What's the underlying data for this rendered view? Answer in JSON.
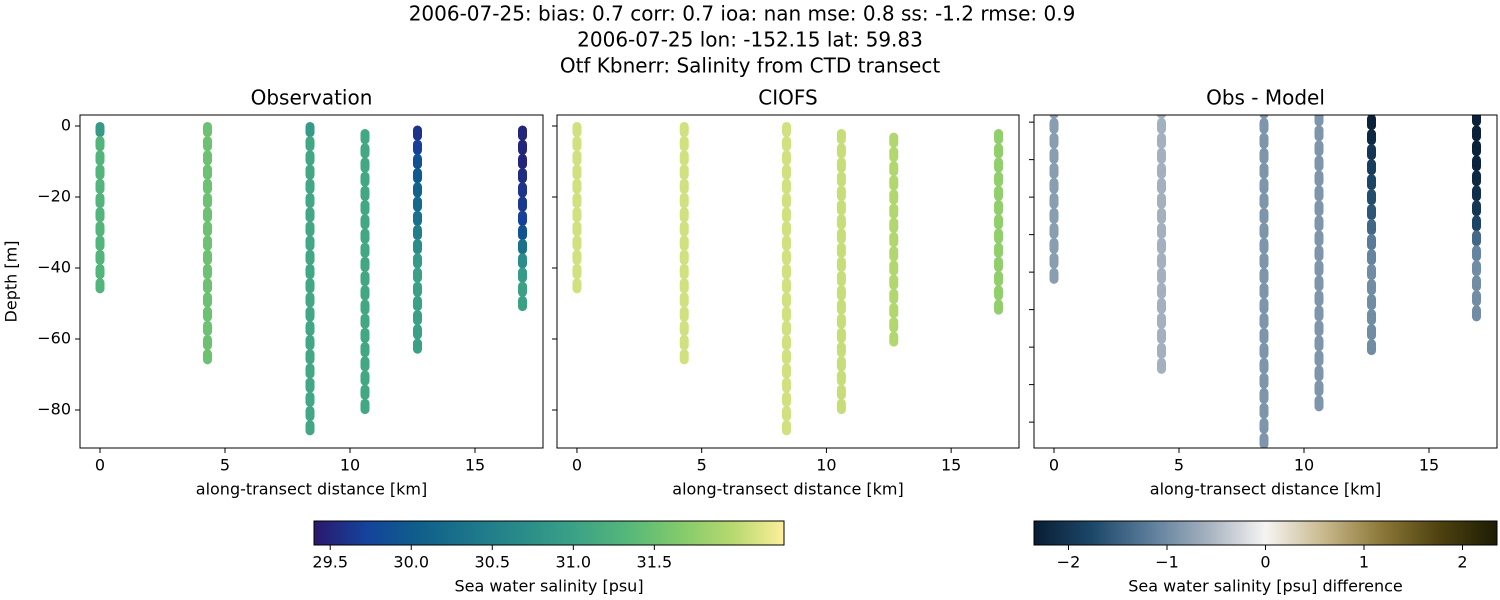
{
  "title": [
    "2006-07-25: bias: 0.7  corr: 0.7  ioa: nan  mse: 0.8  ss: -1.2  rmse: 0.9",
    "2006-07-25 lon: -152.15 lat: 59.83",
    "Otf Kbnerr: Salinity from CTD transect"
  ],
  "chart_data": [
    {
      "type": "scatter",
      "title": "Observation",
      "xlabel": "along-transect distance [km]",
      "ylabel": "Depth [m]",
      "colorbar": 0,
      "xlim": [
        -0.8,
        17.72
      ],
      "ylim": [
        -90.7,
        3.1
      ],
      "xticks": [
        0,
        5,
        10,
        15
      ],
      "yticks": [
        0,
        {
          "value": -20,
          "label": "−20"
        },
        {
          "value": -40,
          "label": "−40"
        },
        {
          "value": -60,
          "label": "−60"
        },
        {
          "value": -80,
          "label": "−80"
        }
      ],
      "show_ytick_labels": true,
      "casts": [
        {
          "x": 0,
          "depth": [
            -1,
            -5,
            -9,
            -13,
            -17,
            -21,
            -25,
            -29,
            -33,
            -37,
            -41,
            -45
          ],
          "values": [
            30.9,
            31.3,
            31.3,
            31.3,
            31.3,
            31.3,
            31.3,
            31.3,
            31.3,
            31.3,
            31.3,
            31.3
          ]
        },
        {
          "x": 4.3,
          "depth": [
            -1,
            -5,
            -9,
            -13,
            -17,
            -21,
            -25,
            -29,
            -33,
            -37,
            -41,
            -45,
            -49,
            -53,
            -57,
            -61,
            -65
          ],
          "values": [
            31.5,
            31.5,
            31.5,
            31.5,
            31.5,
            31.5,
            31.5,
            31.5,
            31.5,
            31.5,
            31.5,
            31.5,
            31.5,
            31.5,
            31.5,
            31.5,
            31.5
          ]
        },
        {
          "x": 8.4,
          "depth": [
            -1,
            -5,
            -9,
            -13,
            -17,
            -21,
            -25,
            -29,
            -33,
            -37,
            -41,
            -45,
            -49,
            -53,
            -57,
            -61,
            -65,
            -69,
            -73,
            -77,
            -81,
            -85
          ],
          "values": [
            30.9,
            31.1,
            31.1,
            31.1,
            31.1,
            31.1,
            31.1,
            31.1,
            31.1,
            31.1,
            31.1,
            31.1,
            31.1,
            31.1,
            31.1,
            31.1,
            31.1,
            31.1,
            31.1,
            31.1,
            31.1,
            31.1
          ]
        },
        {
          "x": 10.6,
          "depth": [
            -3,
            -7,
            -11,
            -15,
            -19,
            -23,
            -27,
            -31,
            -35,
            -39,
            -43,
            -47,
            -51,
            -55,
            -59,
            -63,
            -67,
            -71,
            -75,
            -79
          ],
          "values": [
            31.1,
            31.1,
            31.1,
            31.1,
            31.1,
            31.1,
            31.1,
            31.1,
            31.1,
            31.1,
            31.1,
            31.1,
            31.1,
            31.1,
            31.1,
            31.1,
            31.1,
            31.1,
            31.1,
            31.1
          ]
        },
        {
          "x": 12.7,
          "depth": [
            -2,
            -6,
            -10,
            -14,
            -18,
            -22,
            -26,
            -30,
            -34,
            -38,
            -42,
            -46,
            -50,
            -54,
            -58,
            -62
          ],
          "values": [
            29.6,
            29.7,
            29.9,
            30.0,
            30.1,
            30.2,
            30.3,
            30.5,
            30.7,
            30.9,
            31.0,
            31.0,
            31.0,
            31.0,
            31.0,
            31.0
          ]
        },
        {
          "x": 16.9,
          "depth": [
            -2,
            -6,
            -10,
            -14,
            -18,
            -22,
            -26,
            -30,
            -34,
            -38,
            -42,
            -46,
            -50
          ],
          "values": [
            29.5,
            29.5,
            29.5,
            29.55,
            29.6,
            29.65,
            29.7,
            29.9,
            30.3,
            30.7,
            30.9,
            31.0,
            31.0
          ]
        }
      ]
    },
    {
      "type": "scatter",
      "title": "CIOFS",
      "xlabel": "along-transect distance [km]",
      "colorbar": 0,
      "xlim": [
        -0.8,
        17.72
      ],
      "ylim": [
        -90.7,
        3.1
      ],
      "xticks": [
        0,
        5,
        10,
        15
      ],
      "yticks": [
        0,
        -20,
        -40,
        -60,
        -80
      ],
      "show_ytick_labels": false,
      "casts": [
        {
          "x": 0,
          "depth": [
            -1,
            -5,
            -9,
            -13,
            -17,
            -21,
            -25,
            -29,
            -33,
            -37,
            -41,
            -45
          ],
          "values": [
            32.1,
            32.1,
            32.1,
            32.1,
            32.1,
            32.1,
            32.1,
            32.1,
            32.1,
            32.1,
            32.1,
            32.1
          ]
        },
        {
          "x": 4.3,
          "depth": [
            -1,
            -5,
            -9,
            -13,
            -17,
            -21,
            -25,
            -29,
            -33,
            -37,
            -41,
            -45,
            -49,
            -53,
            -57,
            -61,
            -65
          ],
          "values": [
            32.1,
            32.1,
            32.1,
            32.1,
            32.1,
            32.1,
            32.1,
            32.1,
            32.1,
            32.1,
            32.1,
            32.1,
            32.1,
            32.1,
            32.1,
            32.1,
            32.1
          ]
        },
        {
          "x": 8.4,
          "depth": [
            -1,
            -5,
            -9,
            -13,
            -17,
            -21,
            -25,
            -29,
            -33,
            -37,
            -41,
            -45,
            -49,
            -53,
            -57,
            -61,
            -65,
            -69,
            -73,
            -77,
            -81,
            -85
          ],
          "values": [
            32.1,
            32.1,
            32.1,
            32.1,
            32.1,
            32.1,
            32.1,
            32.1,
            32.1,
            32.1,
            32.1,
            32.1,
            32.1,
            32.1,
            32.1,
            32.1,
            32.1,
            32.1,
            32.1,
            32.1,
            32.1,
            32.1
          ]
        },
        {
          "x": 10.6,
          "depth": [
            -3,
            -7,
            -11,
            -15,
            -19,
            -23,
            -27,
            -31,
            -35,
            -39,
            -43,
            -47,
            -51,
            -55,
            -59,
            -63,
            -67,
            -71,
            -75,
            -79
          ],
          "values": [
            32.05,
            32.05,
            32.05,
            32.05,
            32.05,
            32.05,
            32.05,
            32.05,
            32.05,
            32.05,
            32.05,
            32.05,
            32.05,
            32.05,
            32.05,
            32.05,
            32.05,
            32.05,
            32.05,
            32.05
          ]
        },
        {
          "x": 12.7,
          "depth": [
            -4,
            -8,
            -12,
            -16,
            -20,
            -24,
            -28,
            -32,
            -36,
            -40,
            -44,
            -48,
            -52,
            -56,
            -60
          ],
          "values": [
            31.95,
            31.95,
            31.95,
            31.95,
            31.95,
            31.95,
            31.95,
            31.95,
            31.95,
            31.95,
            31.95,
            31.95,
            31.95,
            31.95,
            31.95
          ]
        },
        {
          "x": 16.9,
          "depth": [
            -3,
            -7,
            -11,
            -15,
            -19,
            -23,
            -27,
            -31,
            -35,
            -39,
            -43,
            -47,
            -51
          ],
          "values": [
            31.75,
            31.75,
            31.75,
            31.75,
            31.75,
            31.75,
            31.75,
            31.75,
            31.75,
            31.75,
            31.75,
            31.75,
            31.75
          ]
        }
      ]
    },
    {
      "type": "scatter",
      "title": "Obs - Model",
      "xlabel": "along-transect distance [km]",
      "colorbar": 1,
      "xlim": [
        -0.8,
        17.72
      ],
      "ylim": [
        -86.9,
        1.9
      ],
      "xticks": [
        0,
        5,
        10,
        15
      ],
      "yticks": [
        0,
        -10,
        -20,
        -30,
        -40,
        -50,
        -60,
        -70,
        -80
      ],
      "show_ytick_labels": false,
      "casts": [
        {
          "x": 0,
          "depth": [
            3,
            -1,
            -5,
            -9,
            -13,
            -17,
            -21,
            -25,
            -29,
            -33,
            -37,
            -41
          ],
          "values": [
            -0.8,
            -0.8,
            -0.8,
            -0.8,
            -0.8,
            -0.8,
            -0.8,
            -0.8,
            -0.8,
            -0.8,
            -0.8,
            -0.8
          ]
        },
        {
          "x": 4.3,
          "depth": [
            3,
            -1,
            -5,
            -9,
            -13,
            -17,
            -21,
            -25,
            -29,
            -33,
            -37,
            -41,
            -45,
            -49,
            -53,
            -57,
            -61,
            -65
          ],
          "values": [
            -0.6,
            -0.6,
            -0.6,
            -0.6,
            -0.6,
            -0.6,
            -0.6,
            -0.6,
            -0.6,
            -0.6,
            -0.6,
            -0.6,
            -0.6,
            -0.6,
            -0.6,
            -0.6,
            -0.6,
            -0.6
          ]
        },
        {
          "x": 8.4,
          "depth": [
            3,
            -1,
            -5,
            -9,
            -13,
            -17,
            -21,
            -25,
            -29,
            -33,
            -37,
            -41,
            -45,
            -49,
            -53,
            -57,
            -61,
            -65,
            -69,
            -73,
            -77,
            -81,
            -85
          ],
          "values": [
            -0.9,
            -0.9,
            -0.9,
            -0.9,
            -0.9,
            -0.9,
            -0.9,
            -0.9,
            -0.9,
            -0.9,
            -0.9,
            -0.9,
            -0.9,
            -0.9,
            -0.9,
            -0.9,
            -0.9,
            -0.9,
            -0.9,
            -0.9,
            -0.9,
            -0.9,
            -0.9
          ]
        },
        {
          "x": 10.6,
          "depth": [
            1,
            -3,
            -7,
            -11,
            -15,
            -19,
            -23,
            -27,
            -31,
            -35,
            -39,
            -43,
            -47,
            -51,
            -55,
            -59,
            -63,
            -67,
            -71,
            -75
          ],
          "values": [
            -0.9,
            -0.9,
            -0.9,
            -0.9,
            -0.9,
            -0.9,
            -0.9,
            -0.9,
            -0.9,
            -0.9,
            -0.9,
            -0.9,
            -0.9,
            -0.9,
            -0.9,
            -0.9,
            -0.9,
            -0.9,
            -0.9,
            -0.9
          ]
        },
        {
          "x": 12.7,
          "depth": [
            0,
            -4,
            -8,
            -12,
            -16,
            -20,
            -24,
            -28,
            -32,
            -36,
            -40,
            -44,
            -48,
            -52,
            -56,
            -60
          ],
          "values": [
            -2.3,
            -2.2,
            -2.0,
            -1.9,
            -1.8,
            -1.7,
            -1.6,
            -1.4,
            -1.2,
            -1.1,
            -1.0,
            -1.0,
            -1.0,
            -1.0,
            -1.0,
            -1.0
          ]
        },
        {
          "x": 16.9,
          "depth": [
            1,
            -3,
            -7,
            -11,
            -15,
            -19,
            -23,
            -27,
            -31,
            -35,
            -39,
            -43,
            -47,
            -51
          ],
          "values": [
            -2.3,
            -2.3,
            -2.3,
            -2.25,
            -2.2,
            -2.1,
            -2.0,
            -1.8,
            -1.4,
            -1.1,
            -1.0,
            -1.0,
            -1.0,
            -1.0
          ]
        }
      ]
    }
  ],
  "colorbars": [
    {
      "label": "Sea water salinity [psu]",
      "clim": [
        29.4,
        32.3
      ],
      "ticks": [
        29.5,
        {
          "value": 30,
          "label": "30.0"
        },
        30.5,
        {
          "value": 31,
          "label": "31.0"
        },
        31.5
      ],
      "colors": [
        "#2a186c",
        "#14439c",
        "#0f5f8b",
        "#1c768a",
        "#2a8c89",
        "#3ba286",
        "#55b77a",
        "#82ca6b",
        "#b6d86f",
        "#fdef9a"
      ]
    },
    {
      "label": "Sea water salinity [psu] difference",
      "clim": [
        -2.35,
        2.35
      ],
      "ticks": [
        {
          "value": -2,
          "label": "−2"
        },
        {
          "value": -1,
          "label": "−1"
        },
        0,
        1,
        2
      ],
      "colors": [
        "#081d35",
        "#1c4768",
        "#5b7d9a",
        "#a5b1bf",
        "#f6f4f2",
        "#c8b98d",
        "#8c7838",
        "#4e4210",
        "#1c1d04"
      ]
    }
  ]
}
